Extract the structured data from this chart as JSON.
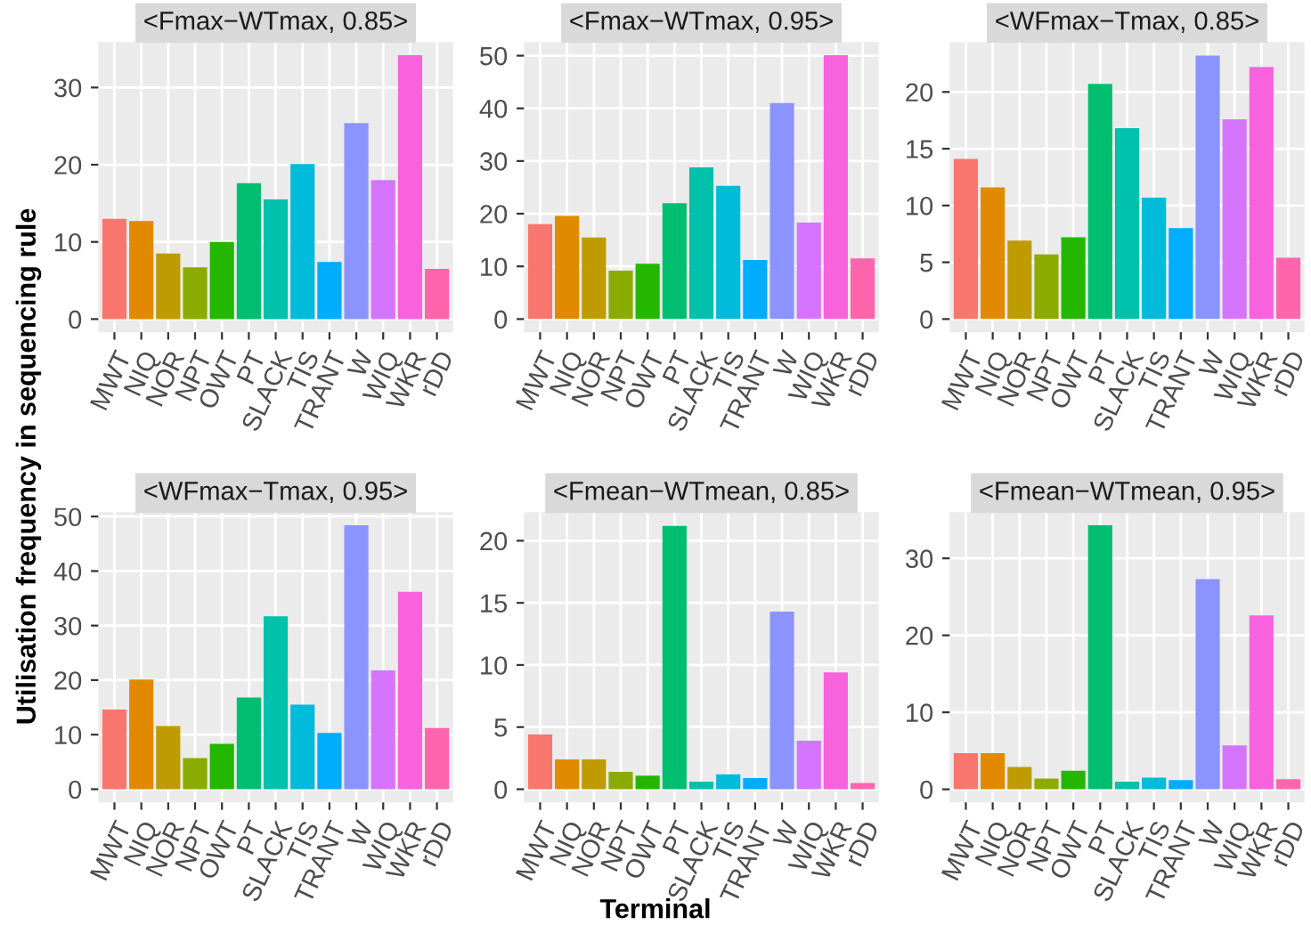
{
  "chart_data": [
    {
      "type": "bar",
      "title": "<Fmax−WTmax, 0.85>",
      "ylabel": "Utilisation frequency in sequencing rule",
      "categories": [
        "MWT",
        "NIQ",
        "NOR",
        "NPT",
        "OWT",
        "PT",
        "SLACK",
        "TIS",
        "TRANT",
        "W",
        "WIQ",
        "WKR",
        "rDD"
      ],
      "values": [
        13,
        12.7,
        8.5,
        6.7,
        10,
        17.6,
        15.5,
        20.1,
        7.4,
        25.4,
        18,
        34.2,
        6.5
      ],
      "colors": [
        "#f8766d",
        "#e18a00",
        "#be9c00",
        "#8cab00",
        "#24b700",
        "#00be70",
        "#00c1ab",
        "#00bbda",
        "#00acfc",
        "#8b93ff",
        "#d575fe",
        "#f962dd",
        "#ff65ac"
      ],
      "ylim": [
        -1.7,
        35.9
      ],
      "yticks": [
        0,
        10,
        20,
        30
      ],
      "grid": true
    },
    {
      "type": "bar",
      "title": "<Fmax−WTmax, 0.95>",
      "categories": [
        "MWT",
        "NIQ",
        "NOR",
        "NPT",
        "OWT",
        "PT",
        "SLACK",
        "TIS",
        "TRANT",
        "W",
        "WIQ",
        "WKR",
        "rDD"
      ],
      "values": [
        18,
        19.6,
        15.5,
        9.2,
        10.5,
        22,
        28.8,
        25.3,
        11.2,
        41,
        18.3,
        50.1,
        11.5
      ],
      "colors": [
        "#f8766d",
        "#e18a00",
        "#be9c00",
        "#8cab00",
        "#24b700",
        "#00be70",
        "#00c1ab",
        "#00bbda",
        "#00acfc",
        "#8b93ff",
        "#d575fe",
        "#f962dd",
        "#ff65ac"
      ],
      "ylim": [
        -2.5,
        52.6
      ],
      "yticks": [
        0,
        10,
        20,
        30,
        40,
        50
      ],
      "grid": true
    },
    {
      "type": "bar",
      "title": "<WFmax−Tmax, 0.85>",
      "categories": [
        "MWT",
        "NIQ",
        "NOR",
        "NPT",
        "OWT",
        "PT",
        "SLACK",
        "TIS",
        "TRANT",
        "W",
        "WIQ",
        "WKR",
        "rDD"
      ],
      "values": [
        14.1,
        11.6,
        6.9,
        5.7,
        7.2,
        20.7,
        16.8,
        10.7,
        8,
        23.2,
        17.6,
        22.2,
        5.4
      ],
      "colors": [
        "#f8766d",
        "#e18a00",
        "#be9c00",
        "#8cab00",
        "#24b700",
        "#00be70",
        "#00c1ab",
        "#00bbda",
        "#00acfc",
        "#8b93ff",
        "#d575fe",
        "#f962dd",
        "#ff65ac"
      ],
      "ylim": [
        -1.16,
        24.4
      ],
      "yticks": [
        0,
        5,
        10,
        15,
        20
      ],
      "grid": true
    },
    {
      "type": "bar",
      "title": "<WFmax−Tmax, 0.95>",
      "categories": [
        "MWT",
        "NIQ",
        "NOR",
        "NPT",
        "OWT",
        "PT",
        "SLACK",
        "TIS",
        "TRANT",
        "W",
        "WIQ",
        "WKR",
        "rDD"
      ],
      "values": [
        14.6,
        20.1,
        11.6,
        5.7,
        8.3,
        16.8,
        31.7,
        15.5,
        10.3,
        48.4,
        21.8,
        36.2,
        11.2
      ],
      "colors": [
        "#f8766d",
        "#e18a00",
        "#be9c00",
        "#8cab00",
        "#24b700",
        "#00be70",
        "#00c1ab",
        "#00bbda",
        "#00acfc",
        "#8b93ff",
        "#d575fe",
        "#f962dd",
        "#ff65ac"
      ],
      "ylim": [
        -2.42,
        50.8
      ],
      "yticks": [
        0,
        10,
        20,
        30,
        40,
        50
      ],
      "grid": true
    },
    {
      "type": "bar",
      "title": "<Fmean−WTmean, 0.85>",
      "xlabel": "Terminal",
      "categories": [
        "MWT",
        "NIQ",
        "NOR",
        "NPT",
        "OWT",
        "PT",
        "SLACK",
        "TIS",
        "TRANT",
        "W",
        "WIQ",
        "WKR",
        "rDD"
      ],
      "values": [
        4.4,
        2.4,
        2.4,
        1.4,
        1.1,
        21.2,
        0.6,
        1.2,
        0.9,
        14.3,
        3.9,
        9.4,
        0.5
      ],
      "colors": [
        "#f8766d",
        "#e18a00",
        "#be9c00",
        "#8cab00",
        "#24b700",
        "#00be70",
        "#00c1ab",
        "#00bbda",
        "#00acfc",
        "#8b93ff",
        "#d575fe",
        "#f962dd",
        "#ff65ac"
      ],
      "ylim": [
        -1.06,
        22.3
      ],
      "yticks": [
        0,
        5,
        10,
        15,
        20
      ],
      "grid": true
    },
    {
      "type": "bar",
      "title": "<Fmean−WTmean, 0.95>",
      "categories": [
        "MWT",
        "NIQ",
        "NOR",
        "NPT",
        "OWT",
        "PT",
        "SLACK",
        "TIS",
        "TRANT",
        "W",
        "WIQ",
        "WKR",
        "rDD"
      ],
      "values": [
        4.7,
        4.7,
        2.9,
        1.4,
        2.4,
        34.3,
        1.0,
        1.5,
        1.2,
        27.3,
        5.7,
        22.6,
        1.3
      ],
      "colors": [
        "#f8766d",
        "#e18a00",
        "#be9c00",
        "#8cab00",
        "#24b700",
        "#00be70",
        "#00c1ab",
        "#00bbda",
        "#00acfc",
        "#8b93ff",
        "#d575fe",
        "#f962dd",
        "#ff65ac"
      ],
      "ylim": [
        -1.7,
        36.0
      ],
      "yticks": [
        0,
        10,
        20,
        30
      ],
      "grid": true
    }
  ]
}
